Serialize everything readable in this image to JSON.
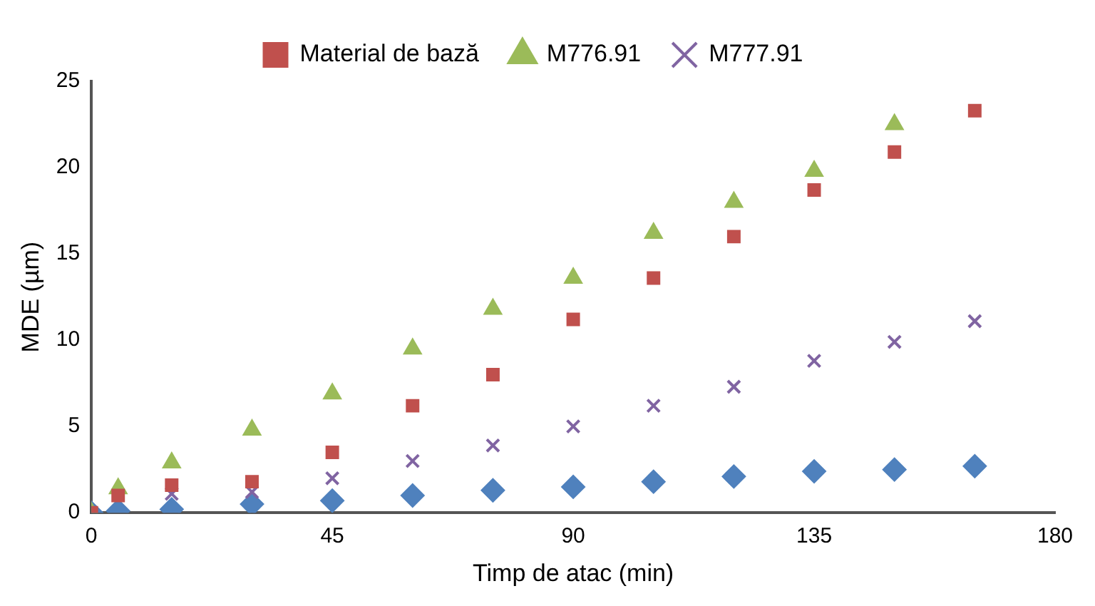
{
  "chart_data": {
    "type": "scatter",
    "xlabel": "Timp de atac (min)",
    "ylabel": "MDE (µm)",
    "x": [
      0,
      5,
      15,
      30,
      45,
      60,
      75,
      90,
      105,
      120,
      135,
      150,
      165
    ],
    "series": [
      {
        "name": "Material de bază",
        "color": "#c0504d",
        "marker": "square",
        "values": [
          0,
          1.0,
          1.6,
          1.8,
          3.5,
          6.2,
          8.0,
          11.2,
          13.6,
          16.0,
          18.7,
          20.9,
          23.3
        ]
      },
      {
        "name": "M776.91",
        "color": "#9bbb59",
        "marker": "triangle",
        "values": [
          0,
          1.4,
          2.9,
          4.8,
          6.9,
          9.5,
          11.8,
          13.6,
          16.2,
          18.0,
          19.8,
          22.5,
          null
        ]
      },
      {
        "name": "M777.91",
        "color": "#8064a2",
        "marker": "cross",
        "values": [
          0,
          null,
          1.1,
          1.2,
          2.0,
          3.0,
          3.9,
          5.0,
          6.2,
          7.3,
          8.8,
          9.9,
          11.1
        ]
      },
      {
        "color": "#4f81bd",
        "marker": "diamond",
        "values": [
          0,
          0.1,
          0.2,
          0.5,
          0.7,
          1.0,
          1.3,
          1.5,
          1.8,
          2.1,
          2.4,
          2.5,
          2.7
        ]
      }
    ],
    "xlim": [
      0,
      180
    ],
    "xticks": [
      0,
      45,
      90,
      135,
      180
    ],
    "ylim": [
      0,
      25
    ],
    "yticks": [
      0,
      5,
      10,
      15,
      20,
      25
    ],
    "grid": false,
    "legend": "top"
  }
}
